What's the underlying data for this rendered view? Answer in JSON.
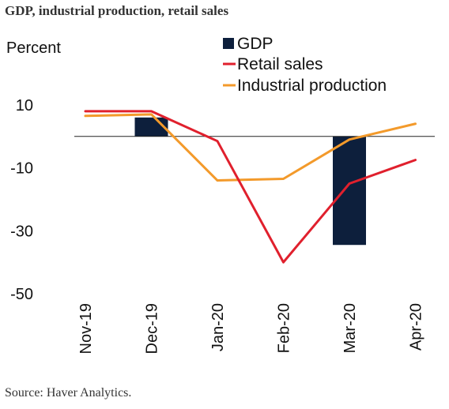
{
  "chart_data": {
    "type": "bar+line",
    "title": "GDP, industrial production, retail sales",
    "ylabel": "Percent",
    "ylim": [
      -50,
      20
    ],
    "yticks": [
      10,
      -10,
      -30,
      -50
    ],
    "categories": [
      "Nov-19",
      "Dec-19",
      "Jan-20",
      "Feb-20",
      "Mar-20",
      "Apr-20"
    ],
    "legend_position": "top-center",
    "grid": false,
    "series": [
      {
        "name": "GDP",
        "type": "bar",
        "color": "#0d1f3c",
        "values": [
          null,
          6,
          null,
          null,
          -34.5,
          null
        ]
      },
      {
        "name": "Retail sales",
        "type": "line",
        "color": "#e0202d",
        "values": [
          8,
          8,
          -1.5,
          -40,
          -15,
          -7.5
        ]
      },
      {
        "name": "Industrial production",
        "type": "line",
        "color": "#f39a2b",
        "values": [
          6.5,
          7,
          -14,
          -13.5,
          -1,
          4
        ]
      }
    ]
  },
  "source": "Source: Haver Analytics."
}
